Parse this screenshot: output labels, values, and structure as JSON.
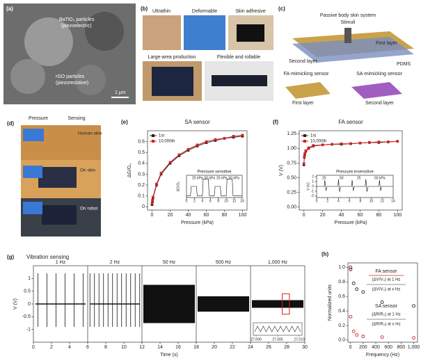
{
  "panels": [
    {
      "label": "(a)",
      "texts": [
        "BaTiO₃ particles",
        "(piezoelectric)",
        "rGO particles",
        "(piezoresistive)",
        "1 μm"
      ]
    },
    {
      "label": "(b)",
      "texts": [
        "Ultrathin",
        "Deformable",
        "Skin adhesive",
        "Large-area production",
        "Flexible and rollable"
      ]
    },
    {
      "label": "(c)",
      "texts": [
        "Passive body skin system",
        "Stimuli",
        "First layer",
        "Second layer",
        "PDMS",
        "FA-mimicking sensor",
        "SA-mimicking sensor",
        "First layer",
        "Second layer"
      ]
    },
    {
      "label": "(d)",
      "texts": [
        "Pressure",
        "Sensing",
        "Human skin",
        "On skin",
        "On robot"
      ]
    }
  ],
  "chart_data": [
    {
      "type": "line",
      "label": "(e)",
      "title": "SA sensor",
      "x_label": "Pressure (kPa)",
      "y_label": "ΔG/G₀",
      "markers": true,
      "x": [
        0,
        0.5,
        1,
        5,
        10,
        20,
        30,
        40,
        50,
        60,
        70,
        80,
        90,
        100
      ],
      "series": [
        {
          "name": "1st",
          "color": "#222222",
          "values": [
            0.02,
            0.05,
            0.08,
            0.2,
            0.3,
            0.4,
            0.47,
            0.52,
            0.56,
            0.59,
            0.61,
            0.63,
            0.64,
            0.65
          ]
        },
        {
          "name": "10,000th",
          "color": "#d62020",
          "values": [
            0.03,
            0.06,
            0.09,
            0.21,
            0.31,
            0.41,
            0.48,
            0.53,
            0.57,
            0.6,
            0.62,
            0.63,
            0.65,
            0.66
          ]
        }
      ],
      "xlim": [
        -5,
        105
      ],
      "xticks": [
        0,
        20,
        40,
        60,
        80,
        100
      ],
      "ylim": [
        -0.03,
        0.7
      ],
      "yticks": [
        0,
        0.1,
        0.2,
        0.3,
        0.4,
        0.5,
        0.6
      ]
    },
    {
      "type": "line",
      "title": "Pressure sensitive",
      "y_label": "ΔG/G₀",
      "annotations": [
        "25 kPa",
        "50 kPa",
        "25 kPa",
        "50 kPa"
      ],
      "x": [
        0,
        1,
        1.2,
        2.5,
        2.7,
        4,
        4.2,
        5.5,
        5.7,
        7,
        7.2,
        8.5,
        8.7,
        10,
        10.2,
        11.5,
        11.7,
        13,
        14
      ],
      "series": [
        {
          "name": "Pressure sensitive",
          "color": "#111111",
          "values": [
            0,
            0,
            0.5,
            0.5,
            0,
            0,
            0.9,
            0.9,
            0,
            0,
            0.5,
            0.5,
            0,
            0,
            0.9,
            0.9,
            0,
            0,
            0
          ]
        }
      ],
      "xlim": [
        0,
        14
      ],
      "xticks": [
        0,
        2,
        4,
        6,
        8,
        10,
        12,
        14
      ],
      "ylim": [
        -0.1,
        1.1
      ]
    },
    {
      "type": "line",
      "label": "(f)",
      "title": "FA sensor",
      "x_label": "Pressure (kPa)",
      "y_label": "V (V)",
      "markers": true,
      "x": [
        0,
        0.5,
        1,
        2,
        5,
        10,
        20,
        30,
        40,
        50,
        60,
        70,
        80,
        90,
        100
      ],
      "series": [
        {
          "name": "1st",
          "color": "#222222",
          "values": [
            0.72,
            0.85,
            0.9,
            0.95,
            1.0,
            1.04,
            1.06,
            1.07,
            1.07,
            1.08,
            1.09,
            1.1,
            1.1,
            1.11,
            1.12
          ]
        },
        {
          "name": "10,000th",
          "color": "#d62020",
          "values": [
            0.74,
            0.86,
            0.91,
            0.96,
            1.01,
            1.05,
            1.06,
            1.07,
            1.08,
            1.08,
            1.09,
            1.1,
            1.11,
            1.11,
            1.12
          ]
        }
      ],
      "xlim": [
        -5,
        105
      ],
      "xticks": [
        0,
        20,
        40,
        60,
        80,
        100
      ],
      "ylim": [
        -0.05,
        1.3
      ],
      "yticks": [
        {
          "value": 0,
          "label": "0.00"
        },
        0.25,
        {
          "value": 0.5,
          "label": "0.50"
        },
        0.75,
        {
          "value": 1,
          "label": "1.00"
        },
        1.25
      ]
    },
    {
      "type": "line",
      "title": "Pressure insensitive",
      "y_label": "V (V)",
      "annotations": [
        "25",
        "50",
        "25",
        "50 kPa"
      ],
      "x": [
        0,
        1.4,
        1.5,
        1.7,
        1.9,
        3.9,
        4,
        4.2,
        4.4,
        6.4,
        6.5,
        6.7,
        6.9,
        8.9,
        9,
        9.2,
        9.4,
        11.4,
        11.5,
        11.7,
        11.9,
        14
      ],
      "series": [
        {
          "name": "Pressure insensitive",
          "color": "#111111",
          "values": [
            0,
            0,
            1.3,
            -0.9,
            0,
            0,
            1.5,
            -1.1,
            0,
            0,
            1.3,
            -0.9,
            0,
            0,
            1.5,
            -1.1,
            0,
            0,
            1.3,
            -0.9,
            0,
            0
          ]
        }
      ],
      "xlim": [
        0,
        14
      ],
      "xticks": [
        0,
        2,
        4,
        6,
        8,
        10,
        12,
        14
      ],
      "ylim": [
        -2.3,
        2.3
      ],
      "yticks": [
        -2,
        -1,
        0,
        1,
        2
      ]
    },
    {
      "type": "trace",
      "label": "(g)",
      "title": "Vibration sensing",
      "x_label": "Time (s)",
      "y_label": "V (V)",
      "categories": [
        "1 Hz",
        "2 Hz",
        "50 Hz",
        "500 Hz",
        "1,000 Hz"
      ],
      "bounds": [
        0,
        6,
        12,
        18,
        24,
        30
      ],
      "values": [
        1.2,
        1.2,
        0.75,
        0.3,
        0.15
      ],
      "color": "#111111",
      "xlim": [
        0,
        30
      ],
      "xticks": [
        0,
        2,
        4,
        6,
        8,
        10,
        12,
        14,
        16,
        18,
        20,
        22,
        24,
        26,
        28,
        30
      ],
      "ylim": [
        -1.5,
        1.5
      ],
      "yticks": [
        -1,
        -0.5,
        0,
        0.5,
        1
      ],
      "inset_xticks": [
        {
          "value": 27,
          "label": "27.000"
        },
        {
          "value": 27.005,
          "label": "27.005"
        },
        {
          "value": 27.01,
          "label": "27.010"
        }
      ]
    },
    {
      "type": "scatter",
      "label": "(h)",
      "x_label": "Frequency (Hz)",
      "y_label": "Normalized units",
      "annotations": [
        "FA sensor",
        "(ΔV/V₀) at 1 Hz",
        "(ΔV/V₀) at x Hz",
        "SA sensor",
        "(ΔR/R₀) at 1 Hz",
        "(ΔR/R₀) at x Hz"
      ],
      "x": [
        1,
        2,
        50,
        100,
        200,
        500,
        1000
      ],
      "series": [
        {
          "name": "FA sensor",
          "color": "#222222",
          "values": [
            1,
            0.97,
            0.78,
            0.7,
            0.66,
            0.52,
            0.47
          ]
        },
        {
          "name": "SA sensor",
          "color": "#d62020",
          "values": [
            1,
            0.32,
            0.12,
            0.07,
            0.05,
            0.04,
            0.03
          ]
        }
      ],
      "xlim": [
        -40,
        1060
      ],
      "xticks": [
        0,
        200,
        400,
        600,
        800,
        {
          "value": 1000,
          "label": "1,000"
        }
      ],
      "ylim": [
        -0.03,
        1.06
      ],
      "yticks": [
        {
          "value": 0,
          "label": "0.0"
        },
        0.2,
        0.4,
        0.6,
        0.8,
        {
          "value": 1,
          "label": "1.0"
        }
      ]
    }
  ]
}
